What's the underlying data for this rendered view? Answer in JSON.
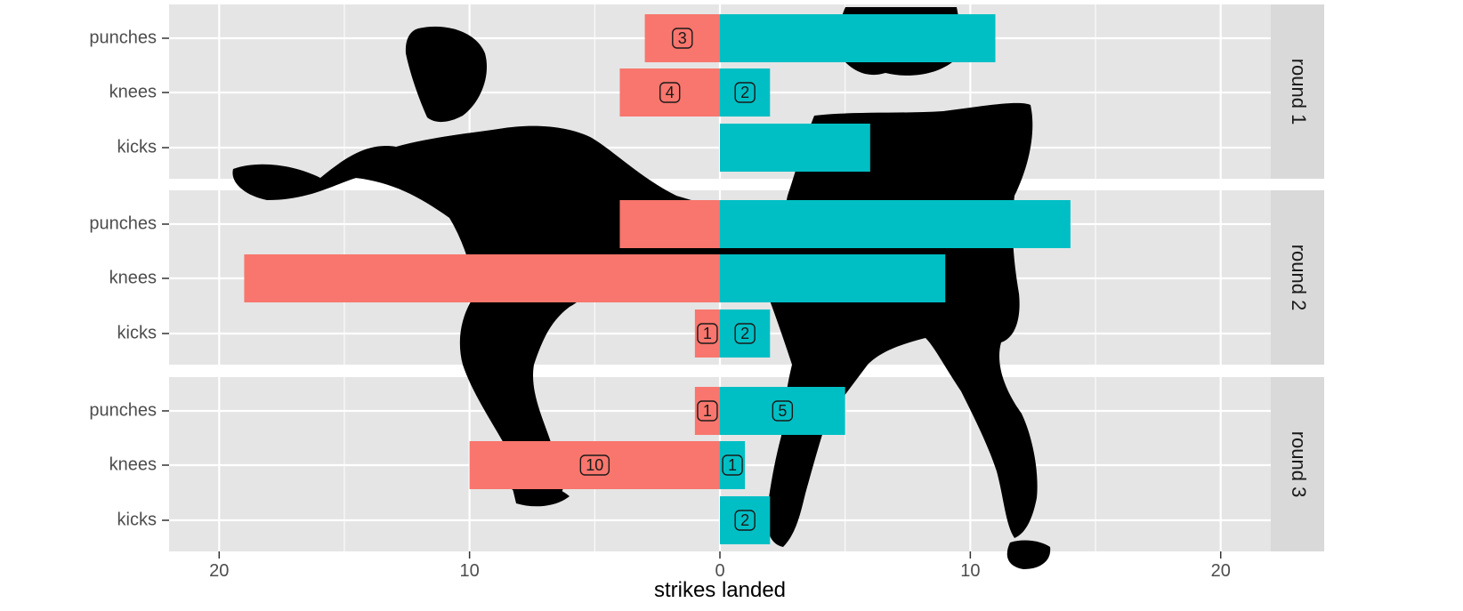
{
  "chart_data": {
    "type": "bar",
    "orientation": "horizontal",
    "xlabel": "strikes landed",
    "xlim": [
      -22,
      22
    ],
    "x_ticks": [
      -20,
      -10,
      0,
      10,
      20
    ],
    "x_tick_labels": [
      "20",
      "10",
      "0",
      "10",
      "20"
    ],
    "categories": [
      "punches",
      "knees",
      "kicks"
    ],
    "facets": [
      "round 1",
      "round 2",
      "round 3"
    ],
    "colors": {
      "left": "#F8766D",
      "right": "#00BFC4",
      "panel": "#E5E5E5",
      "strip": "#D9D9D9",
      "grid": "#FFFFFF"
    },
    "series": [
      {
        "side": "left",
        "values": [
          [
            3,
            4,
            0
          ],
          [
            4,
            19,
            1
          ],
          [
            1,
            10,
            0
          ]
        ],
        "labels": [
          [
            "3",
            "4",
            ""
          ],
          [
            "",
            "",
            "1"
          ],
          [
            "1",
            "10",
            ""
          ]
        ]
      },
      {
        "side": "right",
        "values": [
          [
            11,
            2,
            6
          ],
          [
            14,
            9,
            2
          ],
          [
            5,
            1,
            2
          ]
        ],
        "labels": [
          [
            "",
            "2",
            ""
          ],
          [
            "",
            "",
            "2"
          ],
          [
            "5",
            "1",
            "2"
          ]
        ]
      }
    ],
    "grid": true,
    "background_image": "muay-thai-fighters-silhouette"
  }
}
